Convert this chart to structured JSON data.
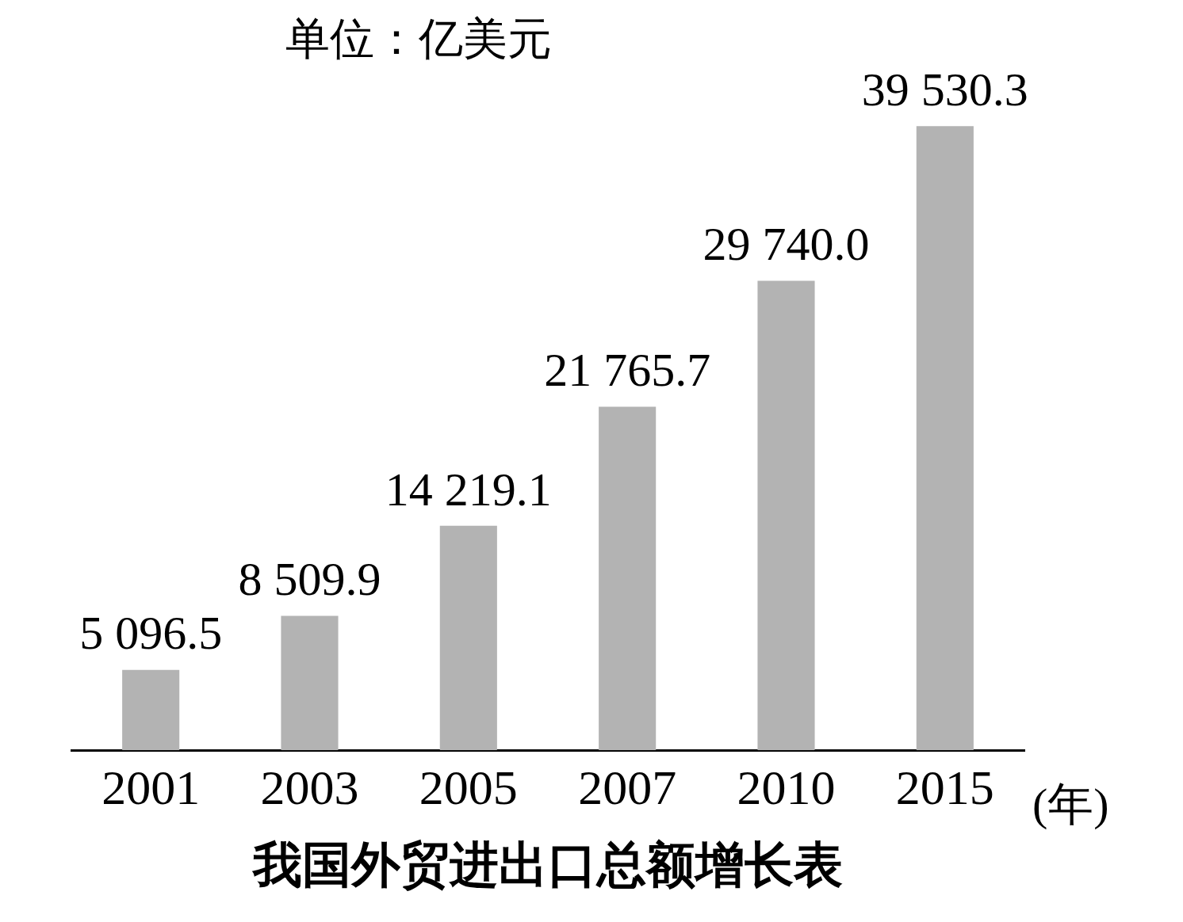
{
  "chart_data": {
    "type": "bar",
    "title": "我国外贸进出口总额增长表",
    "xlabel": "(年)",
    "annotations": [
      "单位：亿美元"
    ],
    "categories": [
      "2001",
      "2003",
      "2005",
      "2007",
      "2010",
      "2015"
    ],
    "values": [
      5096.5,
      8509.9,
      14219.1,
      21765.7,
      29740.0,
      39530.3
    ],
    "value_labels": [
      "5 096.5",
      "8 509.9",
      "14 219.1",
      "21 765.7",
      "29 740.0",
      "39 530.3"
    ],
    "color": "#b3b3b3",
    "grid": false,
    "legend": false
  }
}
